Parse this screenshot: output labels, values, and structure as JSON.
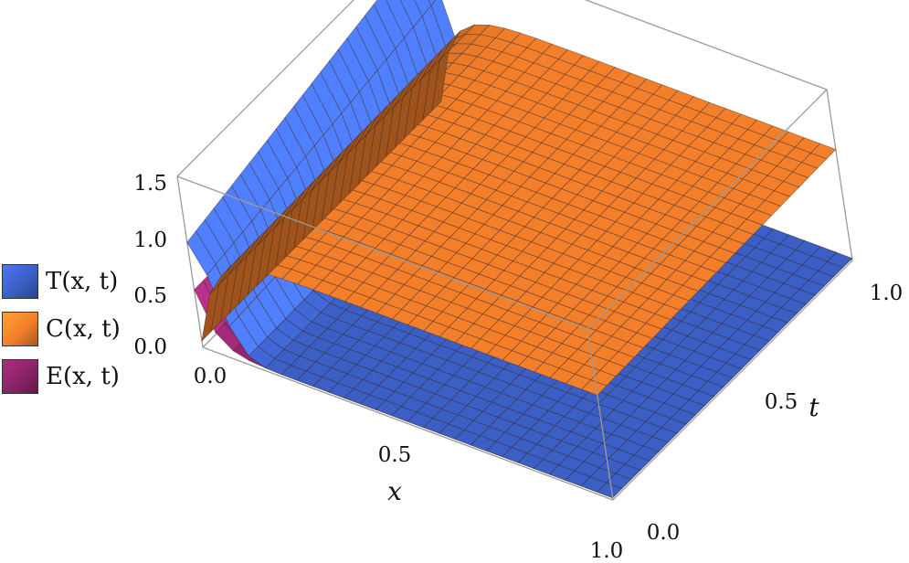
{
  "chart_data": {
    "type": "surface3d",
    "title": "",
    "xlabel": "x",
    "ylabel": "t",
    "zlabel": "",
    "xlim": [
      0,
      1
    ],
    "ylim": [
      0,
      1
    ],
    "zlim": [
      0,
      1.6
    ],
    "x_ticks": [
      "0.0",
      "0.5",
      "1.0"
    ],
    "y_ticks": [
      "0.0",
      "0.5",
      "1.0"
    ],
    "z_ticks": [
      "0.0",
      "0.5",
      "1.0",
      "1.5"
    ],
    "series": [
      {
        "name": "T(x, t)",
        "color": "#3b5fc4"
      },
      {
        "name": "C(x, t)",
        "color": "#f47f2a"
      },
      {
        "name": "E(x, t)",
        "color": "#8a2468"
      }
    ],
    "legend_position": "left",
    "box": true,
    "mesh": true
  }
}
